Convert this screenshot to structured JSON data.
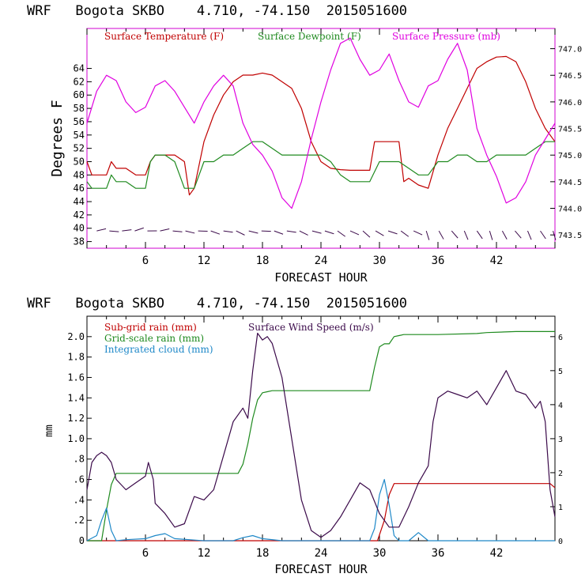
{
  "colors": {
    "temp": "#c00000",
    "dew": "#1f8a1f",
    "pressure": "#e000e0",
    "wind": "#3b0a4a",
    "subgrid": "#c00000",
    "gridscale": "#1f8a1f",
    "cloud": "#1e88c8",
    "frame": "#d000d0"
  },
  "chart_data": [
    {
      "type": "line",
      "title": "WRF   Bogota SKBO    4.710, -74.150  2015051600",
      "xlabel": "FORECAST HOUR",
      "ylabel": "Degrees F",
      "xlim": [
        0,
        48
      ],
      "ylim": [
        37,
        70
      ],
      "xticks": [
        "6",
        "12",
        "18",
        "24",
        "30",
        "36",
        "42"
      ],
      "yticks": [
        "38",
        "40",
        "42",
        "44",
        "46",
        "48",
        "50",
        "52",
        "54",
        "56",
        "58",
        "60",
        "62",
        "64"
      ],
      "y2ticks": [
        "743.5",
        "744.0",
        "744.5",
        "745.0",
        "745.5",
        "746.0",
        "746.5",
        "747.0"
      ],
      "y2lim": [
        743.25,
        747.38
      ],
      "legend": [
        "Surface Temperature (F)",
        "Surface Dewpoint (F)",
        "Surface Pressure (mb)"
      ],
      "series": [
        {
          "name": "Surface Temperature (F)",
          "x": [
            0,
            0.5,
            1,
            2,
            2.5,
            3,
            4,
            5,
            6,
            6.5,
            7,
            8,
            9,
            10,
            10.5,
            11,
            12,
            13,
            14,
            15,
            16,
            17,
            18,
            19,
            20,
            21,
            22,
            23,
            24,
            25,
            26,
            27,
            28,
            29,
            29.5,
            30,
            31,
            32,
            32.5,
            33,
            34,
            35,
            36,
            37,
            38,
            39,
            40,
            41,
            42,
            43,
            44,
            45,
            46,
            47,
            48
          ],
          "y": [
            50,
            48,
            48,
            48,
            50,
            49,
            49,
            48,
            48,
            50,
            51,
            51,
            51,
            50,
            45,
            46,
            53,
            57,
            60,
            62,
            63,
            63,
            63.3,
            63,
            62,
            61,
            58,
            53,
            50,
            49,
            48.8,
            48.7,
            48.7,
            48.7,
            53,
            53,
            53,
            53,
            47,
            47.5,
            46.5,
            46,
            51,
            55,
            58,
            61,
            64,
            65,
            65.7,
            65.8,
            65,
            62,
            58,
            55,
            53
          ]
        },
        {
          "name": "Surface Dewpoint (F)",
          "x": [
            0,
            0.5,
            1,
            2,
            2.5,
            3,
            4,
            5,
            6,
            6.5,
            7,
            8,
            9,
            9.5,
            10,
            11,
            12,
            13,
            14,
            15,
            16,
            17,
            18,
            19,
            20,
            21,
            22,
            23,
            24,
            25,
            26,
            27,
            28,
            29,
            30,
            31,
            32,
            33,
            34,
            35,
            36,
            37,
            38,
            39,
            40,
            41,
            42,
            43,
            44,
            45,
            46,
            47,
            48
          ],
          "y": [
            47,
            46,
            46,
            46,
            48,
            47,
            47,
            46,
            46,
            50,
            51,
            51,
            50,
            48,
            46,
            46,
            50,
            50,
            51,
            51,
            52,
            53,
            53,
            52,
            51,
            51,
            51,
            51,
            51,
            50,
            48,
            47,
            47,
            47,
            50,
            50,
            50,
            49,
            48,
            48,
            50,
            50,
            51,
            51,
            50,
            50,
            51,
            51,
            51,
            51,
            52,
            53,
            53
          ]
        },
        {
          "name": "Surface Pressure (mb)",
          "x": [
            0,
            1,
            2,
            3,
            4,
            5,
            6,
            7,
            8,
            9,
            10,
            11,
            12,
            13,
            14,
            15,
            16,
            17,
            18,
            19,
            20,
            21,
            22,
            23,
            24,
            25,
            26,
            27,
            28,
            29,
            30,
            31,
            32,
            33,
            34,
            35,
            36,
            37,
            38,
            39,
            40,
            41,
            42,
            43,
            44,
            45,
            46,
            47,
            48
          ],
          "y": [
            745.6,
            746.2,
            746.5,
            746.4,
            746.0,
            745.8,
            745.9,
            746.3,
            746.4,
            746.2,
            745.9,
            745.6,
            746.0,
            746.3,
            746.5,
            746.3,
            745.6,
            745.2,
            745.0,
            744.7,
            744.2,
            744.0,
            744.5,
            745.3,
            746.0,
            746.6,
            747.1,
            747.2,
            746.8,
            746.5,
            746.6,
            746.9,
            746.4,
            746.0,
            745.9,
            746.3,
            746.4,
            746.8,
            747.1,
            746.6,
            745.5,
            745.0,
            744.6,
            744.1,
            744.2,
            744.5,
            745.0,
            745.3,
            745.6
          ]
        }
      ]
    },
    {
      "type": "line",
      "title": "WRF   Bogota SKBO    4.710, -74.150  2015051600",
      "xlabel": "FORECAST HOUR",
      "ylabel": "mm",
      "xlim": [
        0,
        48
      ],
      "ylim": [
        0,
        2.2
      ],
      "xticks": [
        "6",
        "12",
        "18",
        "24",
        "30",
        "36",
        "42"
      ],
      "yticks": [
        "0",
        ".2",
        ".4",
        ".6",
        ".8",
        "1.0",
        "1.2",
        "1.4",
        "1.6",
        "1.8",
        "2.0"
      ],
      "y2ticks": [
        "0",
        "1",
        "2",
        "3",
        "4",
        "5",
        "6"
      ],
      "y2lim": [
        0,
        6.6
      ],
      "legend": [
        "Sub-grid rain (mm)",
        "Surface Wind Speed (m/s)",
        "Grid-scale rain (mm)",
        "Integrated cloud (mm)"
      ],
      "series": [
        {
          "name": "Sub-grid rain (mm)",
          "x": [
            0,
            29.8,
            30.5,
            31,
            31.5,
            32,
            36,
            40,
            44,
            47.5,
            48
          ],
          "y": [
            0,
            0,
            0.2,
            0.45,
            0.56,
            0.56,
            0.56,
            0.56,
            0.56,
            0.56,
            0.52
          ]
        },
        {
          "name": "Grid-scale rain (mm)",
          "x": [
            0,
            1.5,
            2,
            2.5,
            3,
            4,
            8,
            12,
            15.5,
            16,
            16.5,
            17,
            17.5,
            18,
            18.5,
            19,
            21,
            25,
            29,
            29.5,
            30,
            30.5,
            31,
            31.5,
            32,
            32.5,
            36,
            40,
            41,
            44,
            47.5,
            48
          ],
          "y": [
            0,
            0,
            0.3,
            0.55,
            0.66,
            0.66,
            0.66,
            0.66,
            0.66,
            0.75,
            0.95,
            1.2,
            1.38,
            1.45,
            1.46,
            1.47,
            1.47,
            1.47,
            1.47,
            1.7,
            1.9,
            1.93,
            1.93,
            2.0,
            2.01,
            2.02,
            2.02,
            2.03,
            2.04,
            2.05,
            2.05,
            2.05
          ]
        },
        {
          "name": "Integrated cloud (mm)",
          "x": [
            0,
            1,
            1.5,
            2,
            2.5,
            3,
            4,
            6,
            7,
            8,
            9,
            12,
            15,
            16,
            17,
            18,
            20,
            24,
            28,
            29,
            29.5,
            30,
            30.5,
            31,
            31.5,
            32,
            33,
            34,
            35,
            36,
            40,
            44,
            48
          ],
          "y": [
            0,
            0.05,
            0.2,
            0.32,
            0.1,
            0,
            0.01,
            0.02,
            0.05,
            0.07,
            0.02,
            0,
            0,
            0.03,
            0.05,
            0.02,
            0,
            0,
            0,
            0,
            0.12,
            0.45,
            0.6,
            0.35,
            0.05,
            0,
            0,
            0.08,
            0,
            0,
            0,
            0,
            0
          ]
        },
        {
          "name": "Surface Wind Speed (m/s)",
          "axis": "right",
          "x": [
            0,
            0.5,
            1,
            1.5,
            2,
            2.5,
            3,
            4,
            5,
            6,
            6.3,
            6.8,
            7,
            8,
            9,
            10,
            11,
            12,
            13,
            14,
            15,
            16,
            16.5,
            17,
            17.5,
            18,
            18.5,
            19,
            20,
            21,
            22,
            23,
            24,
            25,
            26,
            27,
            28,
            29,
            30,
            31,
            32,
            33,
            34,
            35,
            35.5,
            36,
            37,
            38,
            39,
            40,
            41,
            42,
            43,
            44,
            45,
            46,
            46.5,
            47,
            47.5,
            48
          ],
          "y": [
            1.5,
            2.3,
            2.5,
            2.6,
            2.5,
            2.3,
            1.8,
            1.5,
            1.7,
            1.9,
            2.3,
            1.8,
            1.1,
            0.8,
            0.4,
            0.5,
            1.3,
            1.2,
            1.5,
            2.5,
            3.5,
            3.9,
            3.6,
            5.0,
            6.1,
            5.9,
            6.0,
            5.8,
            4.8,
            3.0,
            1.2,
            0.3,
            0.1,
            0.3,
            0.7,
            1.2,
            1.7,
            1.5,
            0.8,
            0.4,
            0.4,
            1.0,
            1.7,
            2.2,
            3.5,
            4.2,
            4.4,
            4.3,
            4.2,
            4.4,
            4.0,
            4.5,
            5.0,
            4.4,
            4.3,
            3.9,
            4.1,
            3.5,
            1.5,
            0.7
          ]
        }
      ]
    }
  ]
}
